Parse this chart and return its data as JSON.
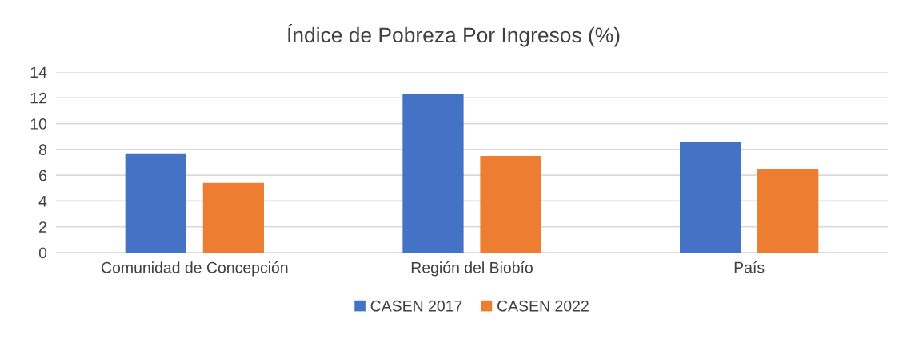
{
  "chart_data": {
    "type": "bar",
    "title": "Índice de Pobreza Por Ingresos (%)",
    "categories": [
      "Comunidad de Concepción",
      "Región del Biobío",
      "País"
    ],
    "series": [
      {
        "name": "CASEN 2017",
        "color": "#4472c4",
        "values": [
          7.7,
          12.3,
          8.6
        ]
      },
      {
        "name": "CASEN 2022",
        "color": "#ed7d31",
        "values": [
          5.4,
          7.5,
          6.5
        ]
      }
    ],
    "ylim": [
      0,
      14
    ],
    "yticks": [
      0,
      2,
      4,
      6,
      8,
      10,
      12,
      14
    ],
    "grid": "y",
    "legend": "bottom"
  }
}
